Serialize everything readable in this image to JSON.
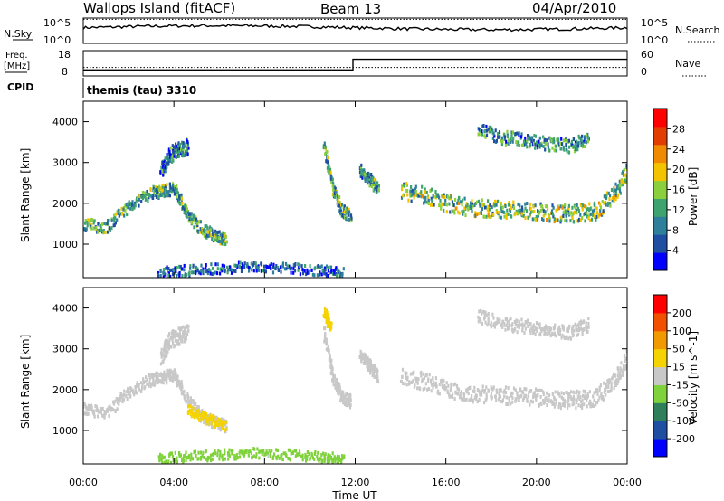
{
  "header": {
    "site": "Wallops Island (fitACF)",
    "beam": "Beam 13",
    "date": "04/Apr/2010"
  },
  "top_panels": {
    "nsky_label": "N.Sky",
    "nsearch_label": "N.Search",
    "sky_ticks": [
      "10^5",
      "10^0"
    ],
    "sky_ticks_right": [
      "10^5",
      "10^0"
    ],
    "freq_label": "Freq.",
    "freq_unit": "[MHz]",
    "freq_ticks": [
      "18",
      "8"
    ],
    "nave_label": "Nave",
    "nave_ticks": [
      "60",
      "0"
    ],
    "cpid_label": "CPID",
    "cpid_text": "themis (tau) 3310"
  },
  "chart_data": [
    {
      "type": "heatmap",
      "name": "power",
      "ylabel": "Slant Range [km]",
      "ylim": [
        180,
        4500
      ],
      "yticks": [
        "4000",
        "3000",
        "2000",
        "1000"
      ],
      "colorbar_label": "Power [dB]",
      "colorbar_ticks": [
        "28",
        "24",
        "20",
        "16",
        "12",
        "8",
        "4"
      ],
      "colors": [
        "#0000ff",
        "#1f4fa0",
        "#2e7f9a",
        "#3ea36e",
        "#8ccf3c",
        "#f4c300",
        "#f08a00",
        "#e23c00",
        "#ff0000"
      ],
      "bands": [
        {
          "x": [
            0.0,
            1.0,
            2.0,
            3.0,
            3.5,
            4.0,
            4.6,
            5.2,
            5.8,
            6.3
          ],
          "y": [
            1500,
            1400,
            1950,
            2250,
            2300,
            2350,
            1700,
            1350,
            1200,
            1100
          ],
          "thickness": 300,
          "value": 12
        },
        {
          "x": [
            3.4,
            3.8,
            4.2,
            4.6
          ],
          "y": [
            2800,
            3200,
            3300,
            3400
          ],
          "thickness": 400,
          "value": 8
        },
        {
          "x": [
            10.6,
            11.0,
            11.4,
            11.8
          ],
          "y": [
            3400,
            2300,
            1800,
            1700
          ],
          "thickness": 300,
          "value": 12
        },
        {
          "x": [
            12.2,
            12.6,
            13.0
          ],
          "y": [
            2800,
            2600,
            2300
          ],
          "thickness": 300,
          "value": 10
        },
        {
          "x": [
            14.0,
            15.0,
            16.0,
            17.0,
            18.0,
            19.0,
            20.0,
            21.0,
            21.8,
            22.6,
            23.4,
            24.0
          ],
          "y": [
            2300,
            2200,
            2000,
            1900,
            1850,
            1850,
            1800,
            1750,
            1750,
            1800,
            2200,
            2800
          ],
          "thickness": 420,
          "value": 14
        },
        {
          "x": [
            17.4,
            18.5,
            19.5,
            20.5,
            21.5,
            22.3
          ],
          "y": [
            3800,
            3600,
            3550,
            3450,
            3400,
            3600
          ],
          "thickness": 320,
          "value": 10
        },
        {
          "x": [
            3.3,
            4.5,
            6.0,
            7.5,
            9.0,
            10.5,
            11.5
          ],
          "y": [
            300,
            350,
            400,
            450,
            400,
            350,
            300
          ],
          "thickness": 250,
          "value": 6
        }
      ]
    },
    {
      "type": "heatmap",
      "name": "velocity",
      "ylabel": "Slant Range [km]",
      "ylim": [
        180,
        4500
      ],
      "yticks": [
        "4000",
        "3000",
        "2000",
        "1000"
      ],
      "colorbar_label": "Velocity [m s^-1]",
      "colorbar_ticks": [
        "200",
        "100",
        "50",
        "15",
        "-15",
        "-50",
        "-100",
        "-200"
      ],
      "colors": [
        "#0000ff",
        "#1f4fa0",
        "#2e7f5a",
        "#7fd23c",
        "#c8c8c8",
        "#f4d300",
        "#f09a00",
        "#f05000",
        "#ff0000"
      ],
      "bands": [
        {
          "x": [
            0.0,
            1.0,
            2.0,
            3.0,
            3.5,
            4.0,
            4.6,
            5.2,
            5.8,
            6.3
          ],
          "y": [
            1500,
            1400,
            1950,
            2250,
            2300,
            2350,
            1700,
            1350,
            1200,
            1100
          ],
          "thickness": 300,
          "value": 0
        },
        {
          "x": [
            4.6,
            5.4,
            6.3
          ],
          "y": [
            1500,
            1300,
            1100
          ],
          "thickness": 250,
          "value": 40
        },
        {
          "x": [
            3.4,
            3.8,
            4.2,
            4.6
          ],
          "y": [
            2800,
            3200,
            3300,
            3400
          ],
          "thickness": 400,
          "value": 0
        },
        {
          "x": [
            10.6,
            11.0,
            11.4,
            11.8
          ],
          "y": [
            3400,
            2300,
            1800,
            1700
          ],
          "thickness": 300,
          "value": 0
        },
        {
          "x": [
            10.6,
            10.9
          ],
          "y": [
            3900,
            3500
          ],
          "thickness": 250,
          "value": 30
        },
        {
          "x": [
            12.2,
            12.6,
            13.0
          ],
          "y": [
            2800,
            2600,
            2300
          ],
          "thickness": 300,
          "value": 0
        },
        {
          "x": [
            14.0,
            15.0,
            16.0,
            17.0,
            18.0,
            19.0,
            20.0,
            21.0,
            21.8,
            22.6,
            23.4,
            24.0
          ],
          "y": [
            2300,
            2200,
            2000,
            1900,
            1850,
            1850,
            1800,
            1750,
            1750,
            1800,
            2200,
            2800
          ],
          "thickness": 420,
          "value": 0
        },
        {
          "x": [
            17.4,
            18.5,
            19.5,
            20.5,
            21.5,
            22.3
          ],
          "y": [
            3800,
            3600,
            3550,
            3450,
            3400,
            3600
          ],
          "thickness": 320,
          "value": 0
        },
        {
          "x": [
            3.3,
            4.5,
            6.0,
            7.5,
            9.0,
            10.5,
            11.5
          ],
          "y": [
            300,
            350,
            400,
            450,
            400,
            350,
            300
          ],
          "thickness": 250,
          "value": -30
        }
      ]
    }
  ],
  "x_axis": {
    "ticks": [
      "00:00",
      "04:00",
      "08:00",
      "12:00",
      "16:00",
      "20:00",
      "00:00"
    ],
    "label": "Time UT",
    "range_hours": [
      0,
      24
    ]
  },
  "time_series": {
    "sky_level": 0.62,
    "search_level": 0.95,
    "freq_before_mhz": 10.4,
    "freq_after_mhz": 14.6,
    "freq_switch_hour": 11.9,
    "nave_level": 20
  }
}
